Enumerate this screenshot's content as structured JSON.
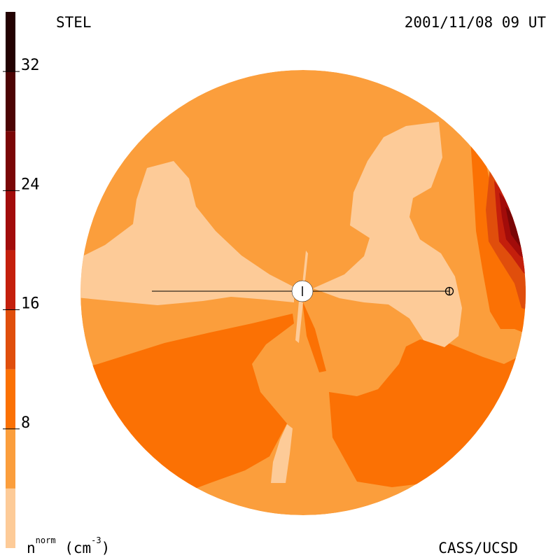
{
  "header": {
    "instrument": "STEL",
    "timestamp": "2001/11/08 09 UT"
  },
  "footer": {
    "credit": "CASS/UCSD",
    "unit_base": "n",
    "unit_sup": "norm",
    "unit_rest": " (cm",
    "unit_exp": "-3",
    "unit_close": ")"
  },
  "chart_data": {
    "type": "heatmap",
    "projection": "polar contour map of normalized solar wind density around the Sun",
    "colorbar": {
      "vmin": 0,
      "vmax": 36,
      "ticks": [
        8,
        16,
        24,
        32
      ],
      "tick_labels": [
        "8",
        "16",
        "24",
        "32"
      ],
      "levels": [
        {
          "from": 0,
          "to": 4,
          "color": "#FDCB98"
        },
        {
          "from": 4,
          "to": 8,
          "color": "#FB9E3C"
        },
        {
          "from": 8,
          "to": 12,
          "color": "#FB7104"
        },
        {
          "from": 12,
          "to": 16,
          "color": "#E04E0C"
        },
        {
          "from": 16,
          "to": 20,
          "color": "#C41F0C"
        },
        {
          "from": 20,
          "to": 24,
          "color": "#A20C0A"
        },
        {
          "from": 24,
          "to": 28,
          "color": "#7A0606"
        },
        {
          "from": 28,
          "to": 32,
          "color": "#4C0404"
        },
        {
          "from": 32,
          "to": 36,
          "color": "#230202"
        }
      ]
    },
    "markers": [
      {
        "name": "sun",
        "symbol": "filled-circle"
      },
      {
        "name": "earth",
        "symbol": "circled-plus"
      }
    ],
    "grid": false
  }
}
